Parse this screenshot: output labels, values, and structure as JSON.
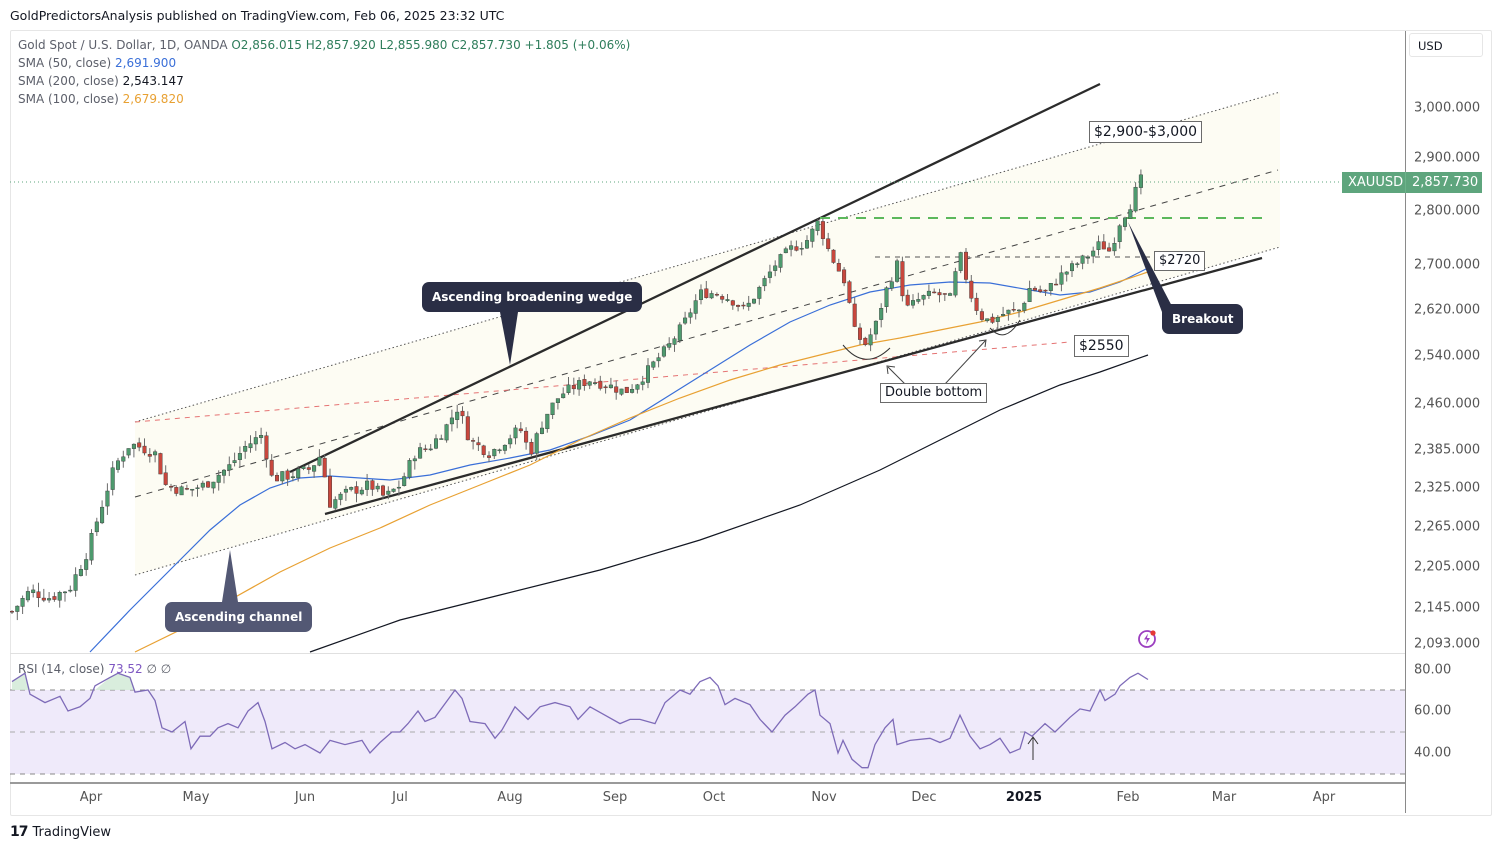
{
  "header": {
    "published": "GoldPredictorsAnalysis published on TradingView.com, Feb 06, 2025 23:32 UTC"
  },
  "legend": {
    "symbol": "Gold Spot / U.S. Dollar, 1D, OANDA",
    "open": "O2,856.015",
    "high": "H2,857.920",
    "low": "L2,855.980",
    "close": "C2,857.730",
    "change": "+1.805 (+0.06%)",
    "sma50_label": "SMA (50, close)",
    "sma50_value": "2,691.900",
    "sma200_label": "SMA (200, close)",
    "sma200_value": "2,543.147",
    "sma100_label": "SMA (100, close)",
    "sma100_value": "2,679.820"
  },
  "price_axis": {
    "currency": "USD",
    "ticks": [
      "3,000.000",
      "2,900.000",
      "2,800.000",
      "2,700.000",
      "2,620.000",
      "2,540.000",
      "2,460.000",
      "2,385.000",
      "2,325.000",
      "2,265.000",
      "2,205.000",
      "2,145.000",
      "2,093.000"
    ],
    "last_symbol": "XAUUSD",
    "last_price": "2,857.730"
  },
  "rsi": {
    "label": "RSI (14, close)",
    "value": "73.52",
    "extra": "∅ ∅",
    "ticks": [
      "80.00",
      "60.00",
      "40.00"
    ]
  },
  "time_axis": {
    "labels": [
      "Apr",
      "May",
      "Jun",
      "Jul",
      "Aug",
      "Sep",
      "Oct",
      "Nov",
      "Dec",
      "2025",
      "Feb",
      "Mar",
      "Apr"
    ]
  },
  "annotations": {
    "wedge": "Ascending broadening wedge",
    "channel": "Ascending channel",
    "breakout": "Breakout",
    "double_bottom": "Double bottom",
    "target": "$2,900-$3,000",
    "level_2720": "$2720",
    "level_2550": "$2550"
  },
  "footer": {
    "brand": "TradingView",
    "logo_mark": "17"
  },
  "colors": {
    "up": "#4e9a6e",
    "down": "#c8473d",
    "sma50": "#3a6fd8",
    "sma100": "#e8a133",
    "sma200": "#131722",
    "rsi": "#7e6bb8",
    "price_tag": "#5ea57d"
  },
  "chart_data": {
    "type": "candlestick",
    "title": "Gold Spot / U.S. Dollar, 1D, OANDA",
    "xlabel": "",
    "ylabel": "USD",
    "ylim": [
      2080,
      3030
    ],
    "x_ticks": [
      "Apr",
      "May",
      "Jun",
      "Jul",
      "Aug",
      "Sep",
      "Oct",
      "Nov",
      "Dec",
      "2025",
      "Feb",
      "Mar",
      "Apr"
    ],
    "y_ticks": [
      2093,
      2145,
      2205,
      2265,
      2325,
      2385,
      2460,
      2540,
      2620,
      2700,
      2800,
      2900,
      3000
    ],
    "last": {
      "open": 2856.015,
      "high": 2857.92,
      "low": 2855.98,
      "close": 2857.73,
      "change": 1.805,
      "change_pct": 0.06
    },
    "indicators": [
      {
        "name": "SMA (50, close)",
        "last": 2691.9
      },
      {
        "name": "SMA (100, close)",
        "last": 2679.82
      },
      {
        "name": "SMA (200, close)",
        "last": 2543.147
      },
      {
        "name": "RSI (14, close)",
        "last": 73.52,
        "levels": [
          70,
          50,
          30
        ]
      }
    ],
    "close_path_approx": [
      {
        "t": "Mar",
        "close": 2160
      },
      {
        "t": "Apr early",
        "close": 2250
      },
      {
        "t": "Apr mid",
        "close": 2380
      },
      {
        "t": "Apr end",
        "close": 2330
      },
      {
        "t": "May mid",
        "close": 2420
      },
      {
        "t": "Jun",
        "close": 2330
      },
      {
        "t": "Jul mid",
        "close": 2470
      },
      {
        "t": "Aug",
        "close": 2410
      },
      {
        "t": "Sep",
        "close": 2580
      },
      {
        "t": "Oct end",
        "close": 2780
      },
      {
        "t": "Nov mid",
        "close": 2560
      },
      {
        "t": "Nov end",
        "close": 2700
      },
      {
        "t": "Dec mid",
        "close": 2660
      },
      {
        "t": "Dec end",
        "close": 2600
      },
      {
        "t": "Jan mid",
        "close": 2700
      },
      {
        "t": "Feb 6",
        "close": 2857.73
      }
    ],
    "levels": [
      {
        "label": "$2,900-$3,000",
        "type": "target zone"
      },
      {
        "label": "$2720",
        "price": 2720
      },
      {
        "label": "$2550",
        "price": 2550
      },
      {
        "label": "breakout level",
        "price": 2790
      }
    ]
  }
}
